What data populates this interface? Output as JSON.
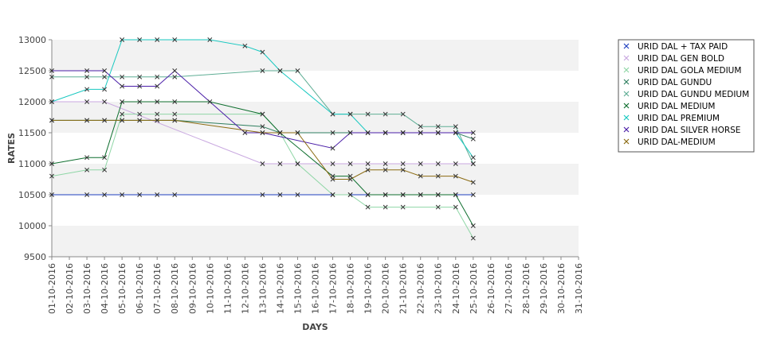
{
  "chart_data": {
    "type": "line",
    "title": "",
    "xlabel": "DAYS",
    "ylabel": "RATES",
    "ylim": [
      9500,
      13000
    ],
    "yticks": [
      9500,
      10000,
      10500,
      11000,
      11500,
      12000,
      12500,
      13000
    ],
    "grid": "alternating horizontal bands",
    "legend_position": "right",
    "categories": [
      "01-10-2016",
      "02-10-2016",
      "03-10-2016",
      "04-10-2016",
      "05-10-2016",
      "06-10-2016",
      "07-10-2016",
      "08-10-2016",
      "09-10-2016",
      "10-10-2016",
      "11-10-2016",
      "12-10-2016",
      "13-10-2016",
      "14-10-2016",
      "15-10-2016",
      "16-10-2016",
      "17-10-2016",
      "18-10-2016",
      "19-10-2016",
      "20-10-2016",
      "21-10-2016",
      "22-10-2016",
      "23-10-2016",
      "24-10-2016",
      "25-10-2016",
      "26-10-2016",
      "27-10-2016",
      "28-10-2016",
      "29-10-2016",
      "30-10-2016",
      "31-10-2016"
    ],
    "series": [
      {
        "name": "URID DAL + TAX PAID",
        "color": "#1f3fbf",
        "values": [
          10500,
          null,
          10500,
          10500,
          10500,
          10500,
          10500,
          10500,
          null,
          null,
          null,
          null,
          10500,
          10500,
          10500,
          null,
          10500,
          10500,
          10500,
          10500,
          10500,
          10500,
          10500,
          10500,
          10500,
          null,
          null,
          null,
          null,
          null,
          null
        ]
      },
      {
        "name": "URID DAL GEN BOLD",
        "color": "#c9a8e0",
        "values": [
          12000,
          null,
          12000,
          12000,
          null,
          null,
          null,
          null,
          null,
          null,
          null,
          null,
          11000,
          11000,
          11000,
          null,
          11000,
          11000,
          11000,
          11000,
          11000,
          11000,
          11000,
          11000,
          11000,
          null,
          null,
          null,
          null,
          null,
          null
        ]
      },
      {
        "name": "URID DAL GOLA MEDIUM",
        "color": "#8fd6a6",
        "values": [
          10800,
          null,
          10900,
          10900,
          11800,
          11800,
          11800,
          11800,
          null,
          null,
          null,
          null,
          11800,
          11500,
          11000,
          null,
          10500,
          10500,
          10300,
          10300,
          10300,
          null,
          10300,
          10300,
          9800,
          null,
          null,
          null,
          null,
          null,
          null
        ]
      },
      {
        "name": "URID DAL GUNDU",
        "color": "#2f7f60",
        "values": [
          11700,
          null,
          11700,
          11700,
          11700,
          11700,
          11700,
          11700,
          null,
          null,
          null,
          null,
          11600,
          11500,
          11500,
          null,
          11500,
          11500,
          11500,
          11500,
          11500,
          11500,
          11500,
          11500,
          11400,
          null,
          null,
          null,
          null,
          null,
          null
        ]
      },
      {
        "name": "URID DAL GUNDU MEDIUM",
        "color": "#5fae95",
        "values": [
          12400,
          null,
          12400,
          12400,
          12400,
          12400,
          12400,
          12400,
          null,
          null,
          null,
          null,
          12500,
          12500,
          12500,
          null,
          11800,
          11800,
          11800,
          11800,
          11800,
          11600,
          11600,
          11600,
          11000,
          null,
          null,
          null,
          null,
          null,
          null
        ]
      },
      {
        "name": "URID DAL MEDIUM",
        "color": "#0f6f2f",
        "values": [
          11000,
          null,
          11100,
          11100,
          12000,
          12000,
          12000,
          12000,
          null,
          12000,
          null,
          null,
          11800,
          11500,
          null,
          null,
          10800,
          10800,
          10500,
          10500,
          10500,
          10500,
          10500,
          10500,
          10000,
          null,
          null,
          null,
          null,
          null,
          null
        ]
      },
      {
        "name": "URID DAL PREMIUM",
        "color": "#18c8c0",
        "values": [
          12000,
          null,
          12200,
          12200,
          13000,
          13000,
          13000,
          13000,
          null,
          13000,
          null,
          12900,
          12800,
          12500,
          null,
          null,
          11800,
          11800,
          11500,
          11500,
          11500,
          11500,
          11500,
          11500,
          11100,
          null,
          null,
          null,
          null,
          null,
          null
        ]
      },
      {
        "name": "URID DAL SILVER HORSE",
        "color": "#4b1fa8",
        "values": [
          12500,
          null,
          12500,
          12500,
          12250,
          12250,
          12250,
          12500,
          null,
          null,
          null,
          11500,
          11500,
          null,
          null,
          null,
          11250,
          11500,
          11500,
          11500,
          11500,
          11500,
          11500,
          11500,
          11500,
          null,
          null,
          null,
          null,
          null,
          null
        ]
      },
      {
        "name": "URID DAL-MEDIUM",
        "color": "#8a6a10",
        "values": [
          11700,
          null,
          11700,
          11700,
          11700,
          11700,
          11700,
          11700,
          null,
          null,
          null,
          null,
          11500,
          11500,
          11500,
          null,
          10750,
          10750,
          10900,
          10900,
          10900,
          10800,
          10800,
          10800,
          10700,
          null,
          null,
          null,
          null,
          null,
          null
        ]
      }
    ]
  }
}
